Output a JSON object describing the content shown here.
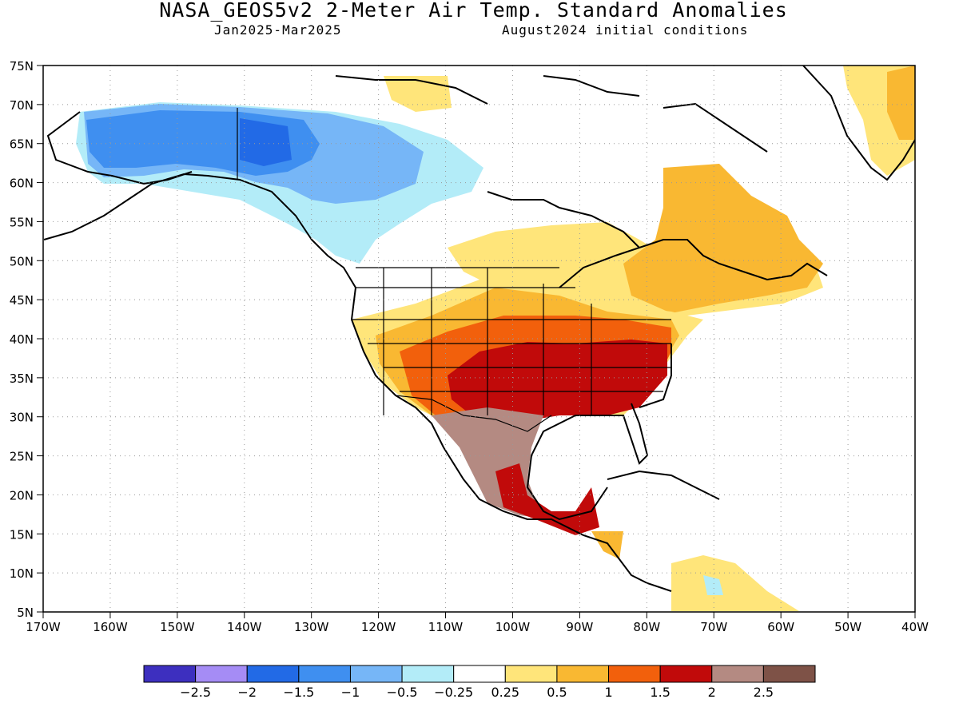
{
  "header": {
    "title": "NASA_GEOS5v2 2-Meter Air Temp. Standard Anomalies",
    "period": "Jan2025-Mar2025",
    "initial_conditions": "August2024 initial conditions"
  },
  "map": {
    "region": "North America",
    "lat_ticks": [
      "75N",
      "70N",
      "65N",
      "60N",
      "55N",
      "50N",
      "45N",
      "40N",
      "35N",
      "30N",
      "25N",
      "20N",
      "15N",
      "10N",
      "5N"
    ],
    "lon_ticks": [
      "170W",
      "160W",
      "150W",
      "140W",
      "130W",
      "120W",
      "110W",
      "100W",
      "90W",
      "80W",
      "70W",
      "60W",
      "50W",
      "40W"
    ],
    "grid": "dotted",
    "lat_range": [
      5,
      75
    ],
    "lon_range": [
      -170,
      -40
    ]
  },
  "legend": {
    "labels": [
      "-2.5",
      "-2",
      "-1.5",
      "-1",
      "-0.5",
      "-0.25",
      "0.25",
      "0.5",
      "1",
      "1.5",
      "2",
      "2.5"
    ],
    "colors": [
      "#3d2fbf",
      "#a58cf5",
      "#226ae6",
      "#3f8ff0",
      "#76b6f7",
      "#b3ecf8",
      "#ffffff",
      "#ffe57a",
      "#f9b832",
      "#f2600c",
      "#c10a0a",
      "#b48a82",
      "#7e5247"
    ]
  }
}
